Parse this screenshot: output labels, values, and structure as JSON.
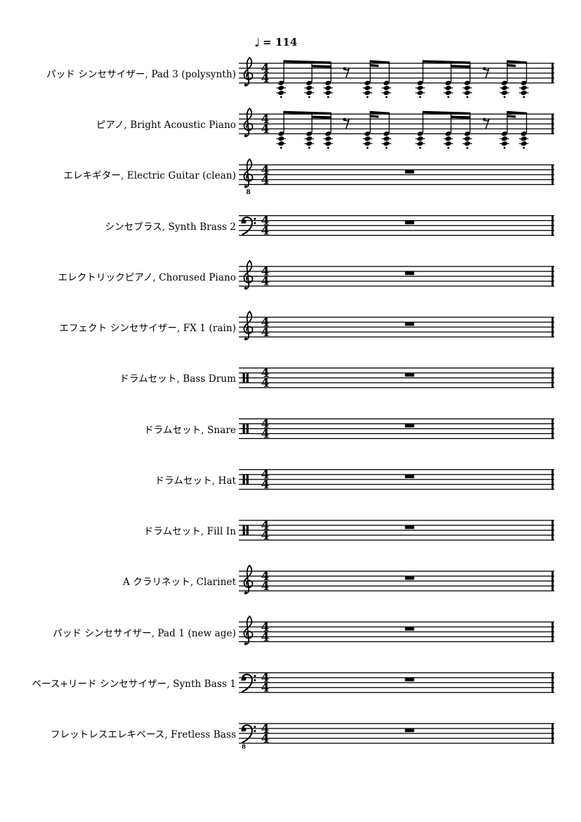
{
  "score": {
    "tempo": {
      "note": "♩",
      "text": "= 114",
      "bpm": 114
    },
    "time_signature": {
      "numerator": "4",
      "denominator": "4"
    },
    "staves": [
      {
        "label": "パッド シンセサイザー, Pad 3 (polysynth)",
        "clef": "treble",
        "content": "chord-pattern"
      },
      {
        "label": "ピアノ, Bright Acoustic Piano",
        "clef": "treble",
        "content": "chord-pattern"
      },
      {
        "label": "エレキギター, Electric Guitar (clean)",
        "clef": "treble-8",
        "content": "whole-rest"
      },
      {
        "label": "シンセブラス, Synth Brass 2",
        "clef": "bass",
        "content": "whole-rest"
      },
      {
        "label": "エレクトリックピアノ, Chorused Piano",
        "clef": "treble",
        "content": "whole-rest"
      },
      {
        "label": "エフェクト シンセサイザー, FX 1 (rain)",
        "clef": "treble",
        "content": "whole-rest"
      },
      {
        "label": "ドラムセット, Bass Drum",
        "clef": "percussion",
        "content": "whole-rest"
      },
      {
        "label": "ドラムセット, Snare",
        "clef": "percussion",
        "content": "whole-rest"
      },
      {
        "label": "ドラムセット, Hat",
        "clef": "percussion",
        "content": "whole-rest"
      },
      {
        "label": "ドラムセット, Fill In",
        "clef": "percussion",
        "content": "whole-rest"
      },
      {
        "label": "A クラリネット, Clarinet",
        "clef": "treble",
        "content": "whole-rest"
      },
      {
        "label": "パッド シンセサイザー, Pad 1 (new age)",
        "clef": "treble",
        "content": "whole-rest"
      },
      {
        "label": "ベース+リード シンセサイザー, Synth Bass 1",
        "clef": "bass",
        "content": "whole-rest"
      },
      {
        "label": "フレットレスエレキベース, Fretless Bass",
        "clef": "bass-8",
        "content": "whole-rest"
      }
    ],
    "chord_pattern": {
      "description": "One 4/4 measure of staccato three-note chords below the staff",
      "chord_size": 3,
      "articulation": "staccato",
      "events": [
        {
          "type": "chord",
          "duration": "eighth"
        },
        {
          "type": "chord",
          "duration": "sixteenth"
        },
        {
          "type": "chord",
          "duration": "sixteenth"
        },
        {
          "type": "rest",
          "duration": "eighth"
        },
        {
          "type": "chord",
          "duration": "sixteenth"
        },
        {
          "type": "chord",
          "duration": "eighth"
        },
        {
          "type": "chord",
          "duration": "eighth"
        },
        {
          "type": "chord",
          "duration": "sixteenth"
        },
        {
          "type": "chord",
          "duration": "sixteenth"
        },
        {
          "type": "rest",
          "duration": "eighth"
        },
        {
          "type": "chord",
          "duration": "sixteenth"
        },
        {
          "type": "chord",
          "duration": "eighth"
        }
      ]
    },
    "colors": {
      "ink": "#000000",
      "background": "#ffffff"
    }
  }
}
